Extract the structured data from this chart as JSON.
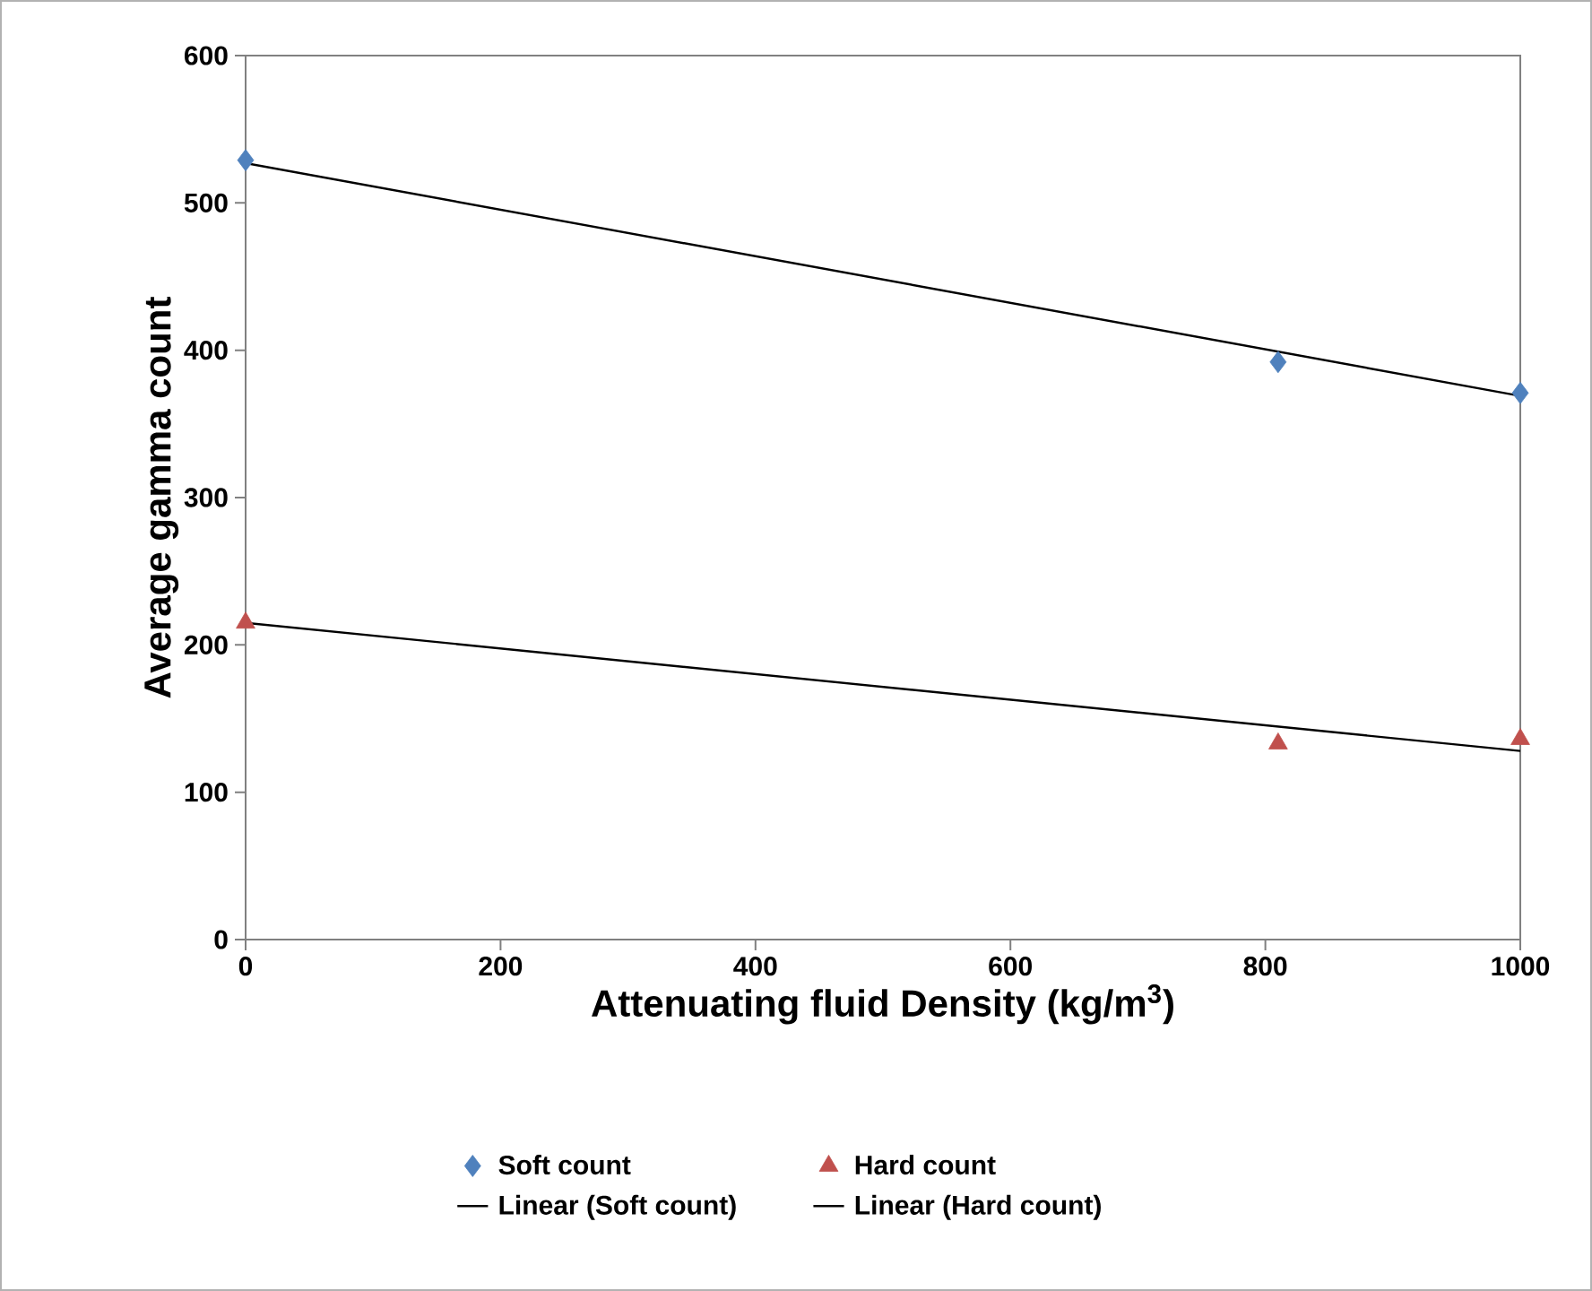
{
  "chart_data": {
    "type": "scatter",
    "xlabel": "Attenuating fluid Density (kg/m$^{3}$)",
    "ylabel": "Average gamma count",
    "xlim": [
      0,
      1000
    ],
    "xticks": [
      0,
      200,
      400,
      600,
      800,
      1000
    ],
    "ylim": [
      0,
      600
    ],
    "yticks": [
      0,
      100,
      200,
      300,
      400,
      500,
      600
    ],
    "grid": false,
    "legend": "bottom",
    "series": [
      {
        "name": "Soft count",
        "color": "#4f81bd",
        "marker": "diamond",
        "x": [
          0,
          810,
          1000
        ],
        "values": [
          529,
          392,
          371
        ]
      },
      {
        "name": "Hard count",
        "color": "#c0504d",
        "marker": "triangle",
        "x": [
          0,
          810,
          1000
        ],
        "values": [
          215,
          133,
          136
        ]
      },
      {
        "name": "Linear (Soft count)",
        "type": "line",
        "color": "#000000",
        "marker": "none",
        "line_style": "solid",
        "x": [
          0,
          1000
        ],
        "values": [
          527,
          369
        ]
      },
      {
        "name": "Linear (Hard count)",
        "type": "line",
        "color": "#000000",
        "marker": "none",
        "line_style": "solid",
        "x": [
          0,
          1000
        ],
        "values": [
          215,
          128
        ]
      }
    ]
  }
}
